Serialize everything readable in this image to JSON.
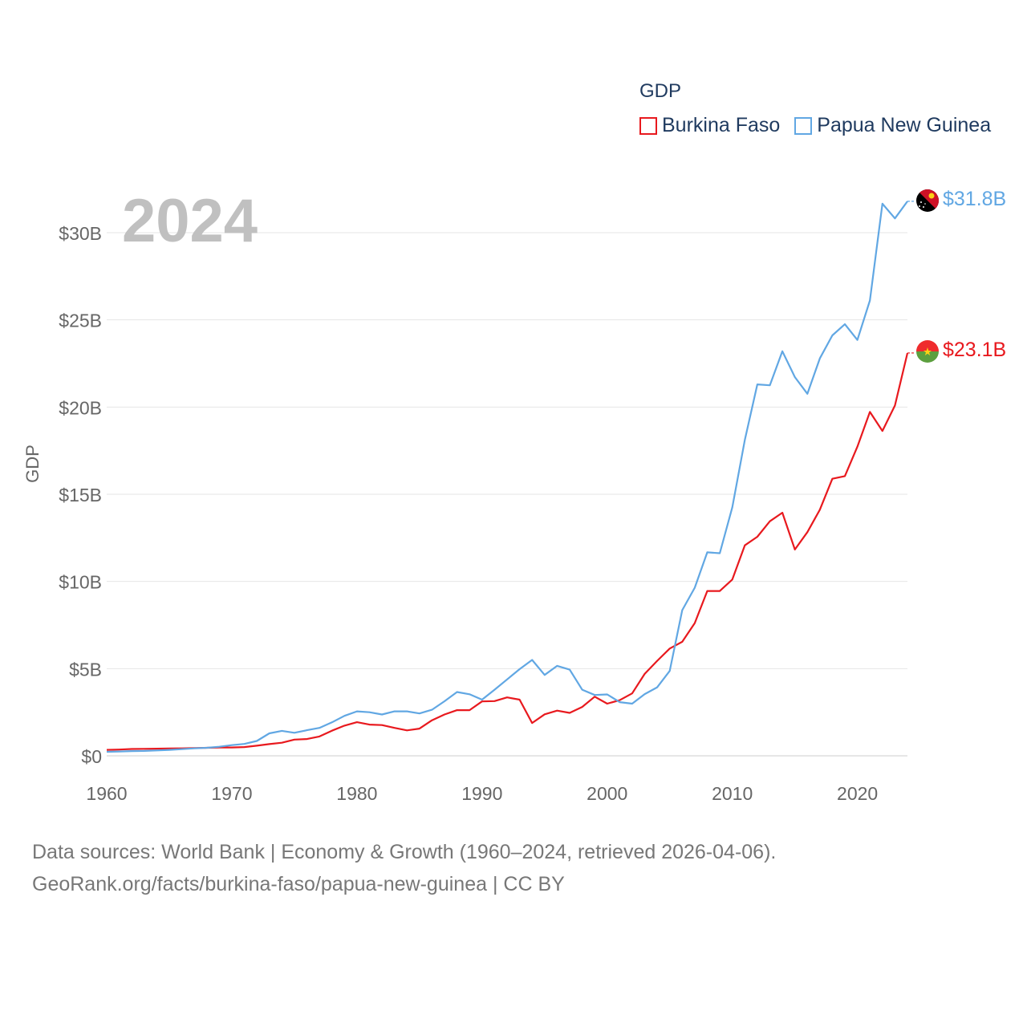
{
  "chart_data": {
    "type": "line",
    "year_label": "2024",
    "ylabel": "GDP",
    "legend_title": "GDP",
    "ylim": [
      0,
      32000000000
    ],
    "xlim": [
      1960,
      2024
    ],
    "x_ticks": [
      1960,
      1970,
      1980,
      1990,
      2000,
      2010,
      2020
    ],
    "y_ticks": [
      {
        "value": 0,
        "label": "$0"
      },
      {
        "value": 5000000000,
        "label": "$5B"
      },
      {
        "value": 10000000000,
        "label": "$10B"
      },
      {
        "value": 15000000000,
        "label": "$15B"
      },
      {
        "value": 20000000000,
        "label": "$20B"
      },
      {
        "value": 25000000000,
        "label": "$25B"
      },
      {
        "value": 30000000000,
        "label": "$30B"
      }
    ],
    "x_start": 1960,
    "series": [
      {
        "name": "Burkina Faso",
        "color": "#e8191e",
        "flag": "burkina-faso-flag",
        "end_label": "$23.1B",
        "values_billions": [
          0.34,
          0.36,
          0.39,
          0.4,
          0.41,
          0.42,
          0.43,
          0.44,
          0.46,
          0.48,
          0.48,
          0.5,
          0.58,
          0.67,
          0.75,
          0.93,
          0.96,
          1.11,
          1.44,
          1.73,
          1.93,
          1.79,
          1.76,
          1.6,
          1.46,
          1.56,
          2.04,
          2.37,
          2.62,
          2.62,
          3.12,
          3.14,
          3.35,
          3.22,
          1.88,
          2.38,
          2.59,
          2.46,
          2.8,
          3.39,
          2.99,
          3.19,
          3.58,
          4.7,
          5.45,
          6.15,
          6.54,
          7.61,
          9.45,
          9.45,
          10.11,
          12.07,
          12.56,
          13.45,
          13.94,
          11.83,
          12.83,
          14.11,
          15.89,
          16.04,
          17.73,
          19.72,
          18.63,
          20.09,
          23.1
        ]
      },
      {
        "name": "Papua New Guinea",
        "color": "#61a7e3",
        "flag": "papua-new-guinea-flag",
        "end_label": "$31.8B",
        "values_billions": [
          0.23,
          0.25,
          0.27,
          0.28,
          0.31,
          0.34,
          0.38,
          0.43,
          0.46,
          0.52,
          0.61,
          0.68,
          0.85,
          1.29,
          1.43,
          1.32,
          1.47,
          1.6,
          1.92,
          2.29,
          2.55,
          2.5,
          2.37,
          2.55,
          2.55,
          2.43,
          2.64,
          3.13,
          3.66,
          3.53,
          3.22,
          3.79,
          4.38,
          4.97,
          5.5,
          4.64,
          5.16,
          4.94,
          3.79,
          3.49,
          3.52,
          3.08,
          2.99,
          3.54,
          3.93,
          4.87,
          8.35,
          9.64,
          11.67,
          11.62,
          14.25,
          18.11,
          21.3,
          21.25,
          23.2,
          21.72,
          20.76,
          22.79,
          24.11,
          24.75,
          23.85,
          26.11,
          31.66,
          30.82,
          31.8
        ]
      }
    ]
  },
  "source": {
    "line1": "Data sources: World Bank | Economy & Growth (1960–2024, retrieved 2026-04-06).",
    "line2": "GeoRank.org/facts/burkina-faso/papua-new-guinea | CC BY"
  }
}
